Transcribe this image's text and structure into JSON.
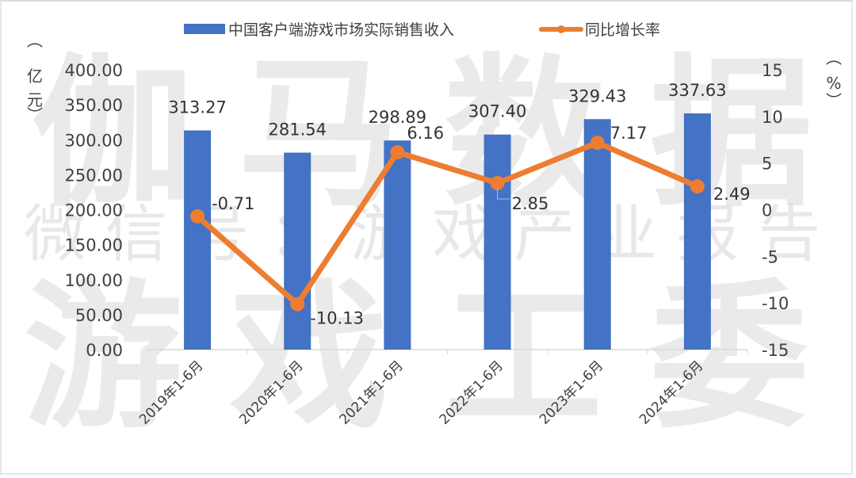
{
  "legend": {
    "bar_label": "中国客户端游戏市场实际销售收入",
    "line_label": "同比增长率"
  },
  "axes": {
    "left_unit": [
      "︵",
      "亿",
      "元",
      "︶"
    ],
    "right_unit": [
      "︵",
      "%",
      "︶"
    ],
    "left_ticks": [
      "400.00",
      "350.00",
      "300.00",
      "250.00",
      "200.00",
      "150.00",
      "100.00",
      "50.00",
      "0.00"
    ],
    "right_ticks": [
      "15",
      "10",
      "5",
      "0",
      "-5",
      "-10",
      "-15"
    ]
  },
  "watermark": {
    "line1": [
      "伽",
      "马",
      "数",
      "据"
    ],
    "line2": [
      "微",
      "信",
      "号",
      "：",
      "游",
      "戏",
      "产",
      "业",
      "报",
      "告"
    ],
    "line3": [
      "游",
      "戏",
      "工",
      "委"
    ]
  },
  "colors": {
    "bar": "#4472c4",
    "line": "#ed7d31",
    "axis": "#d9d9d9",
    "text": "#404040"
  },
  "chart_data": {
    "type": "bar",
    "title": "",
    "categories": [
      "2019年1-6月",
      "2020年1-6月",
      "2021年1-6月",
      "2022年1-6月",
      "2023年1-6月",
      "2024年1-6月"
    ],
    "series": [
      {
        "name": "中国客户端游戏市场实际销售收入",
        "type": "bar",
        "axis": "left",
        "values": [
          313.27,
          281.54,
          298.89,
          307.4,
          329.43,
          337.63
        ],
        "labels": [
          "313.27",
          "281.54",
          "298.89",
          "307.40",
          "329.43",
          "337.63"
        ]
      },
      {
        "name": "同比增长率",
        "type": "line",
        "axis": "right",
        "values": [
          -0.71,
          -10.13,
          6.16,
          2.85,
          7.17,
          2.49
        ],
        "labels": [
          "-0.71",
          "-10.13",
          "6.16",
          "2.85",
          "7.17",
          "2.49"
        ]
      }
    ],
    "xlabel": "",
    "ylabel": "亿元",
    "y2label": "%",
    "ylim": [
      0,
      400
    ],
    "y2lim": [
      -15,
      15
    ],
    "legend_position": "top",
    "grid": false
  }
}
